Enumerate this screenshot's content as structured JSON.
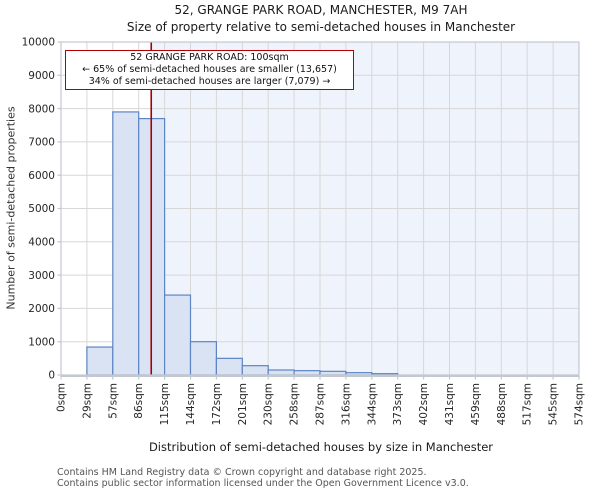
{
  "title": {
    "line1": "52, GRANGE PARK ROAD, MANCHESTER, M9 7AH",
    "line2": "Size of property relative to semi-detached houses in Manchester"
  },
  "annotation": {
    "line1": "52 GRANGE PARK ROAD: 100sqm",
    "line2": "← 65% of semi-detached houses are smaller (13,657)",
    "line3": "34% of semi-detached houses are larger (7,079) →"
  },
  "footer": {
    "line1": "Contains HM Land Registry data © Crown copyright and database right 2025.",
    "line2": "Contains public sector information licensed under the Open Government Licence v3.0."
  },
  "chart_data": {
    "type": "bar",
    "title": "52, GRANGE PARK ROAD, MANCHESTER, M9 7AH — Size of property relative to semi-detached houses in Manchester",
    "xlabel": "Distribution of semi-detached houses by size in Manchester",
    "ylabel": "Number of semi-detached properties",
    "x_tick_labels": [
      "0sqm",
      "29sqm",
      "57sqm",
      "86sqm",
      "115sqm",
      "144sqm",
      "172sqm",
      "201sqm",
      "230sqm",
      "258sqm",
      "287sqm",
      "316sqm",
      "344sqm",
      "373sqm",
      "402sqm",
      "431sqm",
      "459sqm",
      "488sqm",
      "517sqm",
      "545sqm",
      "574sqm"
    ],
    "bin_edges_sqm": [
      0,
      29,
      57,
      86,
      115,
      144,
      172,
      201,
      230,
      258,
      287,
      316,
      344,
      373,
      402,
      431,
      459,
      488,
      517,
      545,
      574
    ],
    "values": [
      0,
      840,
      7900,
      7700,
      2400,
      1000,
      500,
      280,
      150,
      130,
      110,
      70,
      40,
      0,
      0,
      0,
      0,
      0,
      0,
      0
    ],
    "y_ticks": [
      0,
      1000,
      2000,
      3000,
      4000,
      5000,
      6000,
      7000,
      8000,
      9000,
      10000
    ],
    "ylim": [
      0,
      10000
    ],
    "xlim_sqm": [
      0,
      574
    ],
    "grid": true,
    "legend": "none",
    "marker_sqm": 100,
    "smaller_count": 13657,
    "larger_count": 7079,
    "smaller_pct": 65,
    "larger_pct": 34,
    "colors": {
      "bar_fill": "#dae3f4",
      "bar_edge": "#5b85c3",
      "marker_line": "#a40000",
      "annotation_border": "#b40000",
      "shaded_region": "#eff3fb",
      "gridline": "#d7d7d7",
      "spine": "#c3c7cf",
      "tick_label": "#262626",
      "footer_text": "#555555"
    }
  }
}
